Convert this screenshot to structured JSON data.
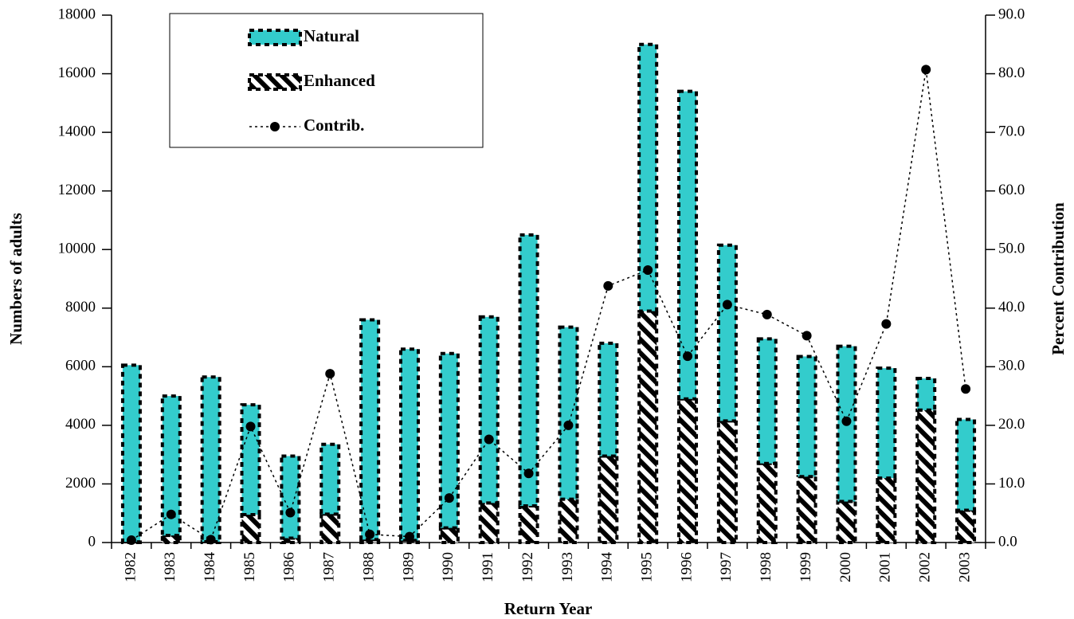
{
  "chart_data": {
    "type": "bar",
    "x_label": "Return Year",
    "y_label": "Numbers of adults",
    "y2_label": "Percent Contribution",
    "categories": [
      "1982",
      "1983",
      "1984",
      "1985",
      "1986",
      "1987",
      "1988",
      "1989",
      "1990",
      "1991",
      "1992",
      "1993",
      "1994",
      "1995",
      "1996",
      "1997",
      "1998",
      "1999",
      "2000",
      "2001",
      "2002",
      "2003"
    ],
    "series": [
      {
        "name": "Natural",
        "type": "bar",
        "color": "#33cccc",
        "values": [
          6030,
          4760,
          5620,
          3750,
          2800,
          2380,
          7500,
          6530,
          5950,
          6350,
          9250,
          5870,
          3850,
          9100,
          10500,
          6000,
          4250,
          4100,
          5300,
          3750,
          1080,
          3100
        ]
      },
      {
        "name": "Enhanced",
        "type": "bar",
        "color": "#000000",
        "values": [
          24,
          240,
          28,
          950,
          150,
          970,
          100,
          70,
          500,
          1350,
          1250,
          1480,
          2950,
          7900,
          4900,
          4150,
          2700,
          2250,
          1400,
          2200,
          4520,
          1100
        ]
      },
      {
        "name": "Contrib.",
        "type": "line",
        "axis": "y2",
        "color": "#000000",
        "values": [
          0.4,
          4.8,
          0.5,
          19.8,
          5.1,
          28.8,
          1.4,
          1.0,
          7.6,
          17.6,
          11.8,
          20.0,
          43.8,
          46.5,
          31.8,
          40.6,
          38.9,
          35.3,
          20.7,
          37.3,
          80.7,
          26.2
        ]
      }
    ],
    "ylim": [
      0,
      18000
    ],
    "yticks": [
      0,
      2000,
      4000,
      6000,
      8000,
      10000,
      12000,
      14000,
      16000,
      18000
    ],
    "y2lim": [
      0,
      90
    ],
    "y2ticks": [
      {
        "value": 0,
        "label": "0.0"
      },
      {
        "value": 10,
        "label": "10.0"
      },
      {
        "value": 20,
        "label": "20.0"
      },
      {
        "value": 30,
        "label": "30.0"
      },
      {
        "value": 40,
        "label": "40.0"
      },
      {
        "value": 50,
        "label": "50.0"
      },
      {
        "value": 60,
        "label": "60.0"
      },
      {
        "value": 70,
        "label": "70.0"
      },
      {
        "value": 80,
        "label": "80.0"
      },
      {
        "value": 90,
        "label": "90.0"
      }
    ],
    "stacked": true,
    "legend": "upper left"
  }
}
